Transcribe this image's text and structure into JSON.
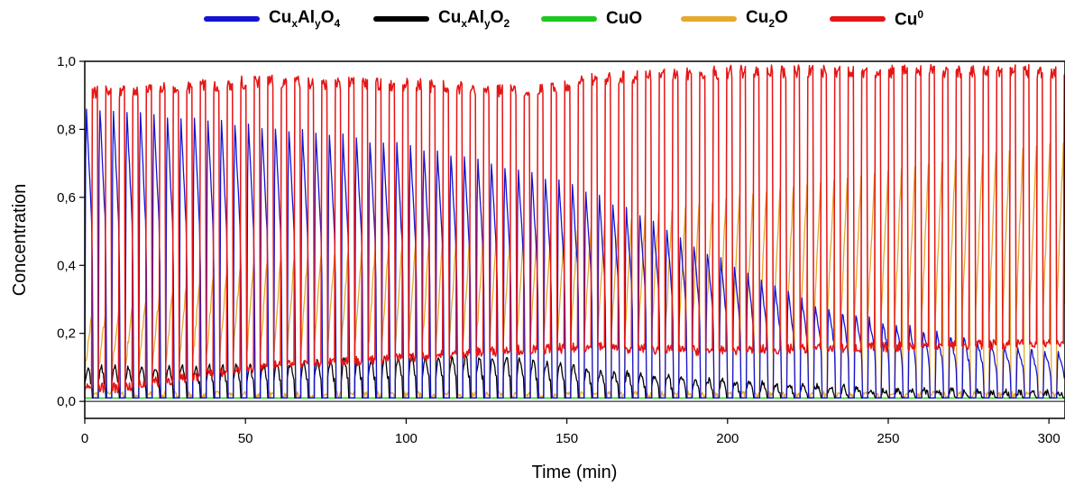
{
  "chart_data": {
    "type": "line",
    "title": "",
    "xlabel": "Time (min)",
    "ylabel": "Concentration",
    "xlim": [
      0,
      305
    ],
    "ylim": [
      -0.05,
      1.0
    ],
    "xticks": [
      "0",
      "50",
      "100",
      "150",
      "200",
      "250",
      "300"
    ],
    "yticks": [
      "0,0",
      "0,2",
      "0,4",
      "0,6",
      "0,8",
      "1,0"
    ],
    "xtick_values": [
      0,
      50,
      100,
      150,
      200,
      250,
      300
    ],
    "ytick_values": [
      0.0,
      0.2,
      0.4,
      0.6,
      0.8,
      1.0
    ],
    "legend_position": "top",
    "grid": false,
    "cycle_period_min": 4.2,
    "series": [
      {
        "name": "CuxAlyO4",
        "color": "#1414d2",
        "cycle_time_min": [
          5,
          30,
          60,
          90,
          120,
          150,
          175,
          200,
          225,
          250,
          275,
          300
        ],
        "cycle_peak": [
          0.9,
          0.87,
          0.84,
          0.8,
          0.75,
          0.67,
          0.56,
          0.42,
          0.3,
          0.24,
          0.19,
          0.15
        ]
      },
      {
        "name": "CuxAlyO2",
        "color": "#000000",
        "cycle_time_min": [
          5,
          50,
          100,
          130,
          160,
          200,
          250,
          300
        ],
        "cycle_peak": [
          0.11,
          0.12,
          0.15,
          0.15,
          0.1,
          0.06,
          0.03,
          0.02
        ]
      },
      {
        "name": "CuO",
        "color": "#1ec81e",
        "cycle_time_min": [
          0,
          300
        ],
        "cycle_peak": [
          0.0,
          0.0
        ]
      },
      {
        "name": "Cu2O",
        "color": "#e5a92e",
        "cycle_time_min": [
          5,
          50,
          100,
          150,
          175,
          200,
          250,
          300
        ],
        "cycle_peak": [
          0.25,
          0.4,
          0.46,
          0.5,
          0.55,
          0.6,
          0.68,
          0.76
        ]
      },
      {
        "name": "Cu0",
        "color": "#e61414",
        "cycle_time_min": [
          10,
          50,
          100,
          130,
          160,
          180,
          200,
          300
        ],
        "cycle_peak": [
          0.93,
          0.96,
          0.95,
          0.93,
          0.97,
          0.98,
          0.99,
          0.99
        ],
        "cycle_trough": [
          0.04,
          0.1,
          0.13,
          0.15,
          0.16,
          0.15,
          0.15,
          0.17
        ]
      }
    ]
  },
  "legend": [
    {
      "base": "Cu",
      "sub1": "x",
      "mid": "Al",
      "sub2": "y",
      "tail": "O",
      "sub3": "4",
      "sup": "",
      "color": "#1414d2"
    },
    {
      "base": "Cu",
      "sub1": "x",
      "mid": "Al",
      "sub2": "y",
      "tail": "O",
      "sub3": "2",
      "sup": "",
      "color": "#000000"
    },
    {
      "base": "CuO",
      "sub1": "",
      "mid": "",
      "sub2": "",
      "tail": "",
      "sub3": "",
      "sup": "",
      "color": "#1ec81e"
    },
    {
      "base": "Cu",
      "sub1": "2",
      "mid": "O",
      "sub2": "",
      "tail": "",
      "sub3": "",
      "sup": "",
      "color": "#e5a92e"
    },
    {
      "base": "Cu",
      "sub1": "",
      "mid": "",
      "sub2": "",
      "tail": "",
      "sub3": "",
      "sup": "0",
      "color": "#e61414"
    }
  ]
}
